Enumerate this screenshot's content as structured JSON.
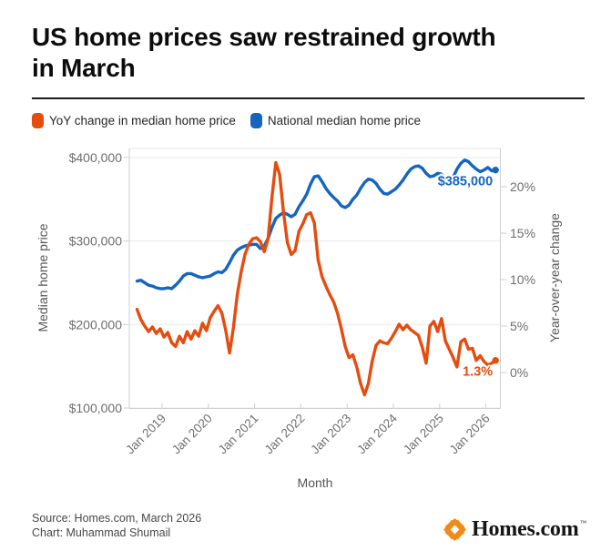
{
  "header": {
    "title_lines": [
      "US home prices saw restrained growth",
      "in March"
    ]
  },
  "legend": {
    "items": [
      {
        "label": "YoY change in median home price",
        "color": "#e64c0e"
      },
      {
        "label": "National median home price",
        "color": "#1565c0"
      }
    ]
  },
  "chart_data": {
    "type": "line",
    "x_label": "Month",
    "y_left_label": "Median home price",
    "y_right_label": "Year-over-year change",
    "x_tick_labels": [
      "Jan 2019",
      "Jan 2020",
      "Jan 2021",
      "Jan 2022",
      "Jan 2023",
      "Jan 2024",
      "Jan 2025",
      "Jan 2026"
    ],
    "y_left_ticks": [
      "$100,000",
      "$200,000",
      "$300,000",
      "$400,000"
    ],
    "y_left_tick_values": [
      100000,
      200000,
      300000,
      400000
    ],
    "y_right_ticks": [
      "0%",
      "5%",
      "10%",
      "15%",
      "20%"
    ],
    "y_right_tick_values": [
      0,
      5,
      10,
      15,
      20
    ],
    "y_left_range": [
      100000,
      411000
    ],
    "y_right_range": [
      -3.8,
      24.1
    ],
    "grid": "horizontal",
    "months_start": "2018-06",
    "months_end": "2026-03",
    "series": [
      {
        "name": "National median home price",
        "axis": "left",
        "unit": "USD",
        "color": "#1565c0",
        "values": [
          252000,
          253000,
          250000,
          247000,
          246000,
          244000,
          243000,
          243000,
          244000,
          243000,
          247000,
          252000,
          258000,
          261000,
          261000,
          259000,
          257000,
          256000,
          257000,
          258000,
          261000,
          263000,
          262000,
          266000,
          274000,
          283000,
          289000,
          292000,
          294000,
          295000,
          296000,
          296000,
          291000,
          294000,
          303000,
          316000,
          327000,
          331000,
          334000,
          332000,
          329000,
          332000,
          341000,
          348000,
          356000,
          368000,
          377000,
          378000,
          371000,
          363000,
          357000,
          352000,
          348000,
          342000,
          340000,
          343000,
          350000,
          355000,
          363000,
          370000,
          374000,
          373000,
          369000,
          362000,
          357000,
          356000,
          359000,
          362000,
          367000,
          373000,
          380000,
          386000,
          389000,
          390000,
          387000,
          381000,
          377000,
          378000,
          381000,
          380000,
          374000,
          370000,
          376000,
          386000,
          393000,
          397000,
          395000,
          390000,
          386000,
          383000,
          385000,
          388000,
          384000,
          385000
        ]
      },
      {
        "name": "YoY change in median home price",
        "axis": "right",
        "unit": "percent",
        "color": "#e64c0e",
        "values": [
          6.8,
          5.7,
          5.0,
          4.4,
          4.9,
          4.2,
          4.7,
          3.8,
          4.3,
          3.2,
          2.8,
          3.9,
          3.2,
          4.4,
          3.6,
          4.5,
          3.9,
          5.3,
          4.5,
          5.9,
          6.6,
          7.2,
          6.4,
          4.6,
          2.1,
          4.8,
          8.4,
          10.8,
          12.7,
          13.8,
          14.4,
          14.5,
          14.1,
          13.0,
          14.4,
          18.8,
          22.6,
          21.3,
          17.2,
          14.0,
          12.7,
          13.1,
          15.2,
          16.0,
          17.0,
          17.2,
          16.1,
          12.1,
          10.3,
          9.3,
          8.4,
          7.6,
          6.4,
          4.7,
          2.8,
          1.6,
          1.9,
          0.6,
          -1.2,
          -2.4,
          -1.2,
          1.2,
          2.9,
          3.4,
          3.2,
          3.1,
          3.7,
          4.4,
          5.2,
          4.6,
          5.1,
          4.6,
          4.3,
          4.0,
          2.7,
          1.0,
          5.0,
          5.5,
          4.4,
          5.8,
          3.4,
          2.5,
          1.6,
          0.6,
          3.3,
          3.6,
          2.5,
          2.6,
          1.3,
          1.8,
          1.2,
          0.8,
          1.0,
          1.3
        ]
      }
    ],
    "annotations": [
      {
        "text": "$385,000",
        "series_index": 0,
        "color": "#1565c0"
      },
      {
        "text": "1.3%",
        "series_index": 1,
        "color": "#e64c0e"
      }
    ]
  },
  "footer": {
    "source_line": "Source: Homes.com, March 2026",
    "credit_line": "Chart: Muhammad Shumail",
    "logo_text": "Homes.com",
    "logo_tm": "™",
    "logo_color": "#f28a1a"
  }
}
